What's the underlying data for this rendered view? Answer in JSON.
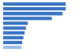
{
  "chart_data": {
    "type": "bar",
    "orientation": "horizontal",
    "categories": [
      null,
      null,
      null,
      null,
      null,
      null,
      null,
      null,
      null,
      null
    ],
    "values": [
      99,
      99,
      94,
      77,
      39,
      36,
      34,
      32,
      30,
      29
    ],
    "colors": [
      "#3a75c4",
      "#3a75c4",
      "#3a75c4",
      "#3a75c4",
      "#3a75c4",
      "#3a75c4",
      "#3a75c4",
      "#3a75c4",
      "#3a75c4",
      "#9dc0ea"
    ],
    "xlim": [
      0,
      100
    ],
    "xticks": [
      0,
      100
    ],
    "grid": false,
    "tick_labels": false
  }
}
